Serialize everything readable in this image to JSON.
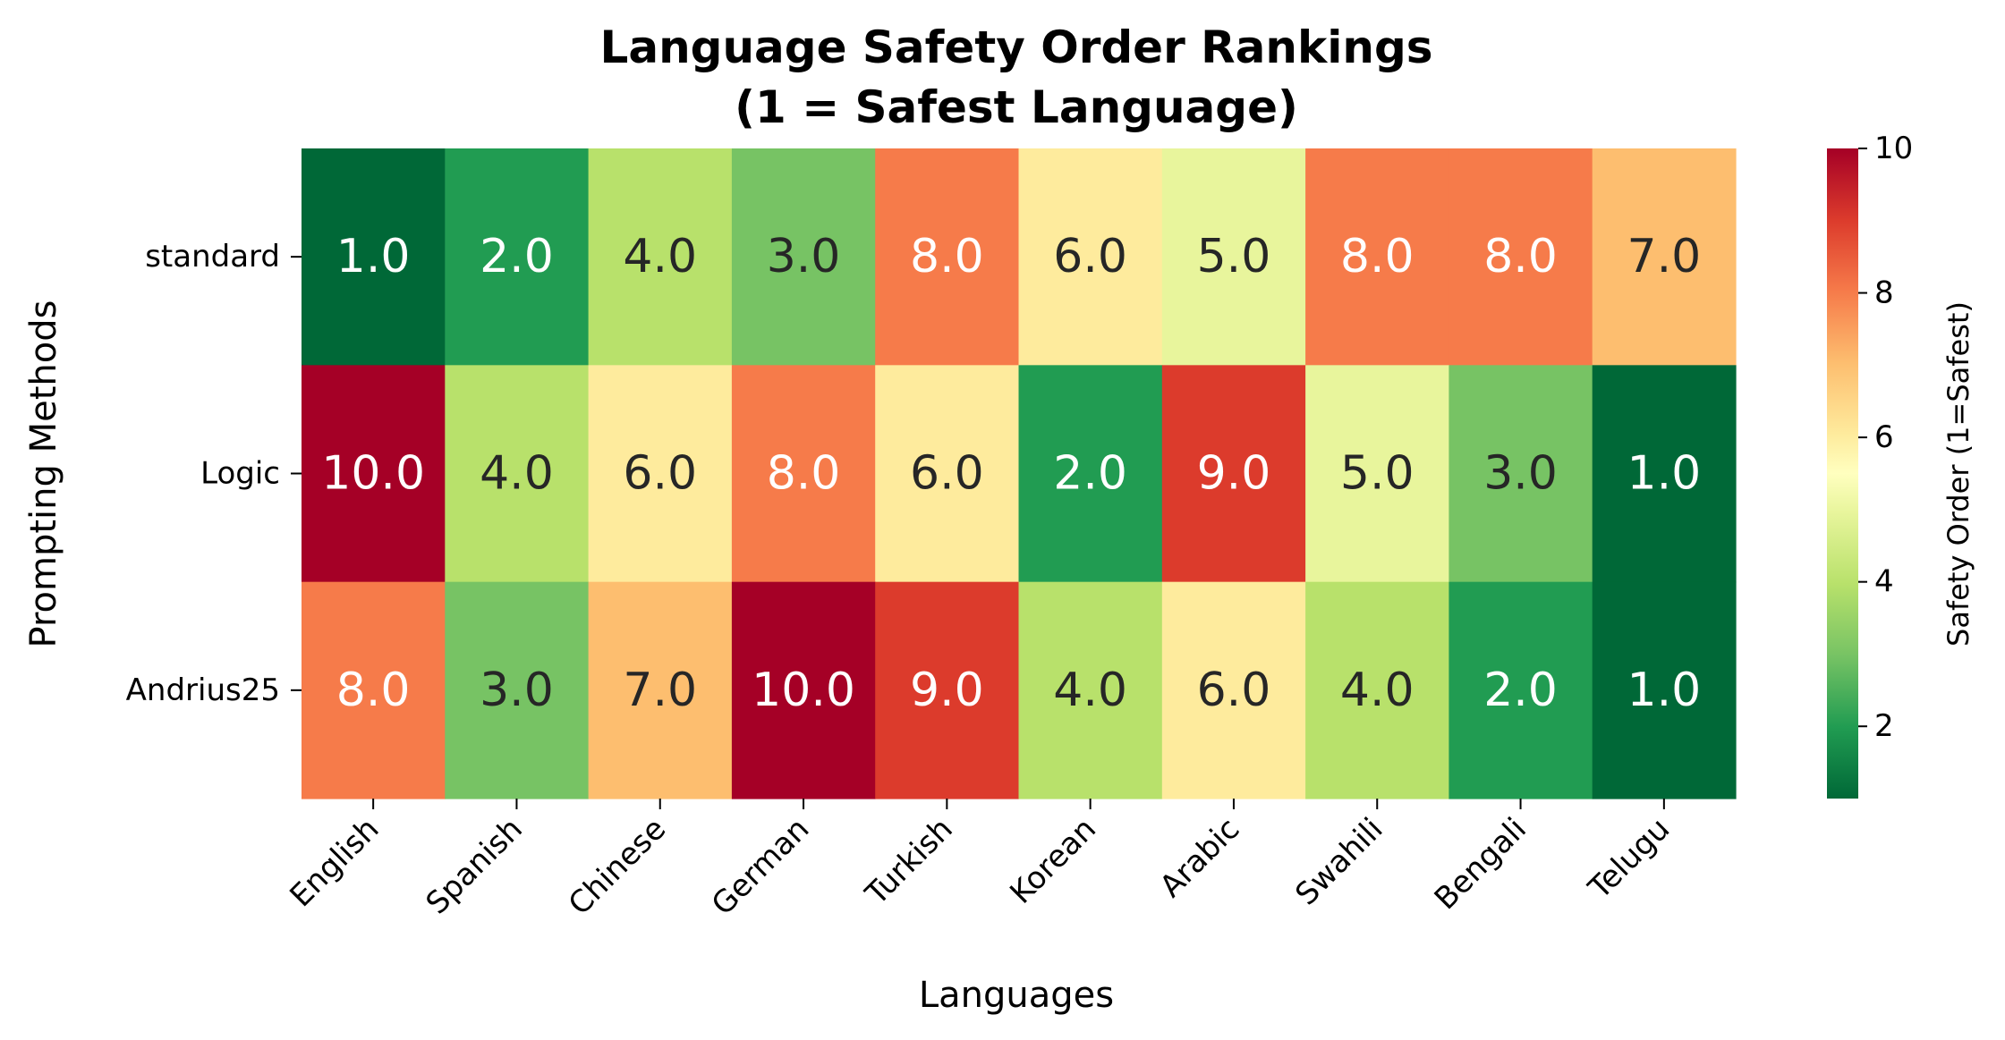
{
  "chart_data": {
    "type": "heatmap",
    "title_line1": "Language Safety Order Rankings",
    "title_line2": "(1 = Safest Language)",
    "xlabel": "Languages",
    "ylabel": "Prompting Methods",
    "x_categories": [
      "English",
      "Spanish",
      "Chinese",
      "German",
      "Turkish",
      "Korean",
      "Arabic",
      "Swahili",
      "Bengali",
      "Telugu"
    ],
    "y_categories": [
      "standard",
      "Logic",
      "Andrius25"
    ],
    "values": [
      [
        1.0,
        2.0,
        4.0,
        3.0,
        8.0,
        6.0,
        5.0,
        8.0,
        8.0,
        7.0
      ],
      [
        10.0,
        4.0,
        6.0,
        8.0,
        6.0,
        2.0,
        9.0,
        5.0,
        3.0,
        1.0
      ],
      [
        8.0,
        3.0,
        7.0,
        10.0,
        9.0,
        4.0,
        6.0,
        4.0,
        2.0,
        1.0
      ]
    ],
    "value_format": "one_decimal",
    "colormap": "RdYlGn_r",
    "vmin": 1,
    "vmax": 10,
    "colorbar": {
      "label": "Safety Order (1=Safest)",
      "ticks": [
        2,
        4,
        6,
        8,
        10
      ]
    },
    "cell_colors": {
      "1": "#006837",
      "2": "#219c52",
      "3": "#77c364",
      "4": "#b8e16b",
      "5": "#e8f59c",
      "6": "#feeb9d",
      "7": "#fdbe6f",
      "8": "#f67b4a",
      "9": "#dc3b2c",
      "10": "#a50026"
    },
    "text_colors": {
      "light": "#ffffff",
      "dark": "#262626"
    }
  }
}
